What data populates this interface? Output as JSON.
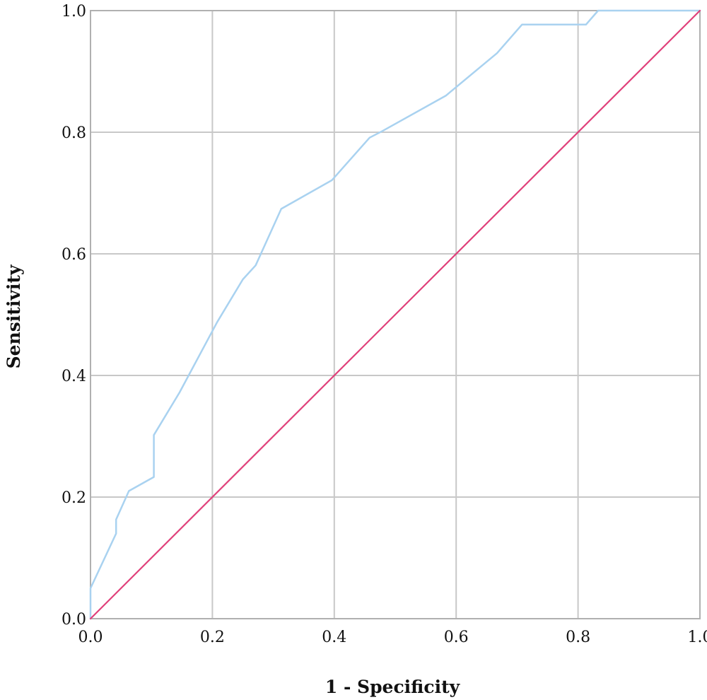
{
  "chart_data": {
    "type": "line",
    "title": "",
    "xlabel": "1 - Specificity",
    "ylabel": "Sensitivity",
    "xlim": [
      0,
      1
    ],
    "ylim": [
      0,
      1
    ],
    "grid": true,
    "legend": "none",
    "x_ticks": [
      "0.0",
      "0.2",
      "0.4",
      "0.6",
      "0.8",
      "1.0"
    ],
    "y_ticks": [
      "0.0",
      "0.2",
      "0.4",
      "0.6",
      "0.8",
      "1.0"
    ],
    "series": [
      {
        "color": "#a9d2f0",
        "x": [
          0.0,
          0.0,
          0.042,
          0.042,
          0.063,
          0.104,
          0.104,
          0.146,
          0.208,
          0.25,
          0.271,
          0.313,
          0.396,
          0.458,
          0.479,
          0.583,
          0.667,
          0.708,
          0.813,
          0.833,
          0.854,
          1.0
        ],
        "y": [
          0.0,
          0.05,
          0.14,
          0.163,
          0.21,
          0.233,
          0.302,
          0.372,
          0.488,
          0.558,
          0.581,
          0.674,
          0.721,
          0.791,
          0.802,
          0.86,
          0.93,
          0.977,
          0.977,
          1.0,
          1.0,
          1.0
        ]
      },
      {
        "color": "#e0407a",
        "x": [
          0.0,
          1.0
        ],
        "y": [
          0.0,
          1.0
        ]
      }
    ]
  }
}
